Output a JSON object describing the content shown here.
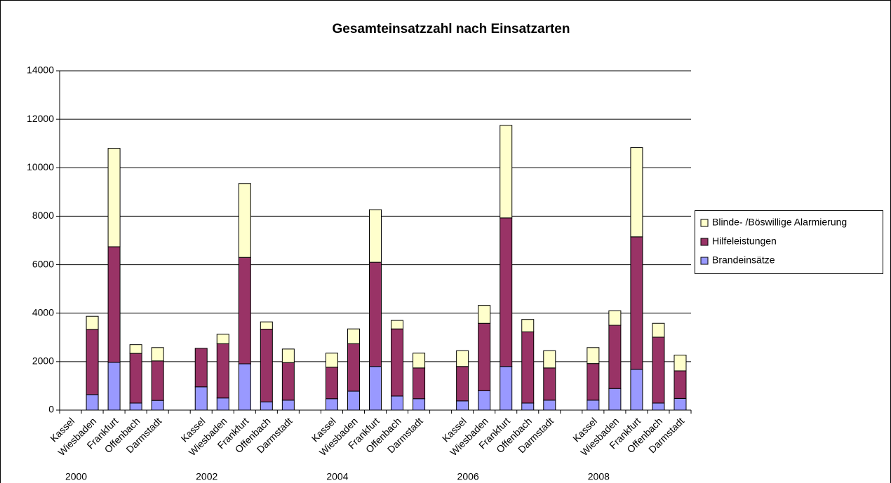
{
  "chart_data": {
    "type": "stacked_bar",
    "title": "Gesamteinsatzzahl nach Einsatzarten",
    "categories": [
      "Kassel",
      "Wiesbaden",
      "Frankfurt",
      "Offenbach",
      "Darmstadt",
      null,
      "Kassel",
      "Wiesbaden",
      "Frankfurt",
      "Offenbach",
      "Darmstadt",
      null,
      "Kassel",
      "Wiesbaden",
      "Frankfurt",
      "Offenbach",
      "Darmstadt",
      null,
      "Kassel",
      "Wiesbaden",
      "Frankfurt",
      "Offenbach",
      "Darmstadt",
      null,
      "Kassel",
      "Wiesbaden",
      "Frankfurt",
      "Offenbach",
      "Darmstadt"
    ],
    "groups": [
      {
        "label": "2000",
        "start": 0
      },
      {
        "label": "2002",
        "start": 6
      },
      {
        "label": "2004",
        "start": 12
      },
      {
        "label": "2006",
        "start": 18
      },
      {
        "label": "2008",
        "start": 24
      }
    ],
    "series": [
      {
        "name": "Brandeinsätze",
        "color": "#9999ff",
        "values": [
          null,
          640,
          1970,
          290,
          400,
          null,
          960,
          500,
          1910,
          340,
          410,
          null,
          470,
          780,
          1800,
          580,
          470,
          null,
          380,
          800,
          1800,
          290,
          410,
          null,
          410,
          890,
          1680,
          290,
          480
        ]
      },
      {
        "name": "Hilfeleistungen",
        "color": "#993366",
        "values": [
          null,
          2690,
          4770,
          2050,
          1630,
          null,
          1590,
          2240,
          4390,
          3000,
          1550,
          null,
          1300,
          1960,
          4300,
          2770,
          1270,
          null,
          1420,
          2780,
          6130,
          2940,
          1330,
          null,
          1510,
          2610,
          5470,
          2720,
          1140
        ]
      },
      {
        "name": "Blinde- /Böswillige Alarmierung",
        "color": "#ffffcc",
        "values": [
          null,
          540,
          4060,
          360,
          550,
          null,
          0,
          390,
          3050,
          300,
          560,
          null,
          580,
          610,
          2170,
          350,
          610,
          null,
          650,
          740,
          3820,
          510,
          710,
          null,
          660,
          600,
          3680,
          570,
          650
        ]
      }
    ],
    "ylim": [
      0,
      14000
    ],
    "yticks": [
      0,
      2000,
      4000,
      6000,
      8000,
      10000,
      12000,
      14000
    ],
    "grid": true,
    "legend": "right"
  }
}
